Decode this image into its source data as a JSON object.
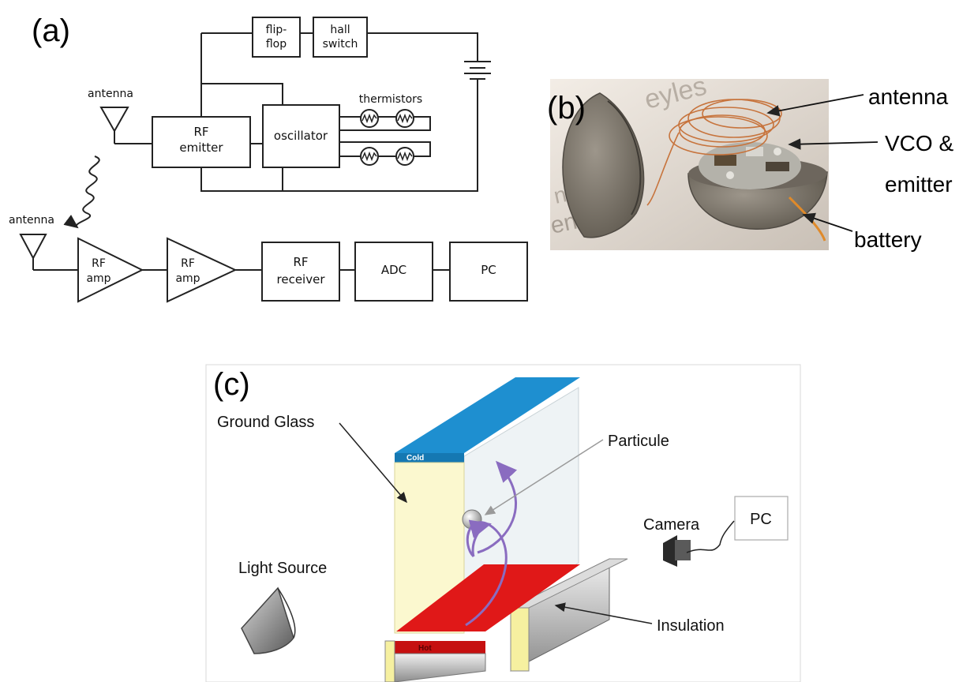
{
  "panel_a": {
    "label": "(a)",
    "blocks": {
      "flip_flop": [
        "flip-",
        "flop"
      ],
      "hall_switch": [
        "hall",
        "switch"
      ],
      "rf_emitter": [
        "RF",
        "emitter"
      ],
      "oscillator": "oscillator",
      "thermistors": "thermistors",
      "antenna_tx": "antenna",
      "antenna_rx": "antenna",
      "rf_amp_1": [
        "RF",
        "amp"
      ],
      "rf_amp_2": [
        "RF",
        "amp"
      ],
      "rf_receiver": [
        "RF",
        "receiver"
      ],
      "adc": "ADC",
      "pc": "PC"
    }
  },
  "panel_b": {
    "label": "(b)",
    "annotations": {
      "antenna": "antenna",
      "vco_1": "VCO &",
      "vco_2": "emitter",
      "battery": "battery"
    }
  },
  "panel_c": {
    "label": "(c)",
    "labels": {
      "ground_glass": "Ground Glass",
      "particule": "Particule",
      "camera": "Camera",
      "pc": "PC",
      "light_source": "Light Source",
      "insulation": "Insulation",
      "cold": "Cold",
      "hot": "Hot"
    },
    "colors": {
      "cold": "#1e8fd0",
      "hot": "#e01818",
      "glass": "#fbf8cf",
      "arrow_path": "#8a6cc0"
    }
  }
}
